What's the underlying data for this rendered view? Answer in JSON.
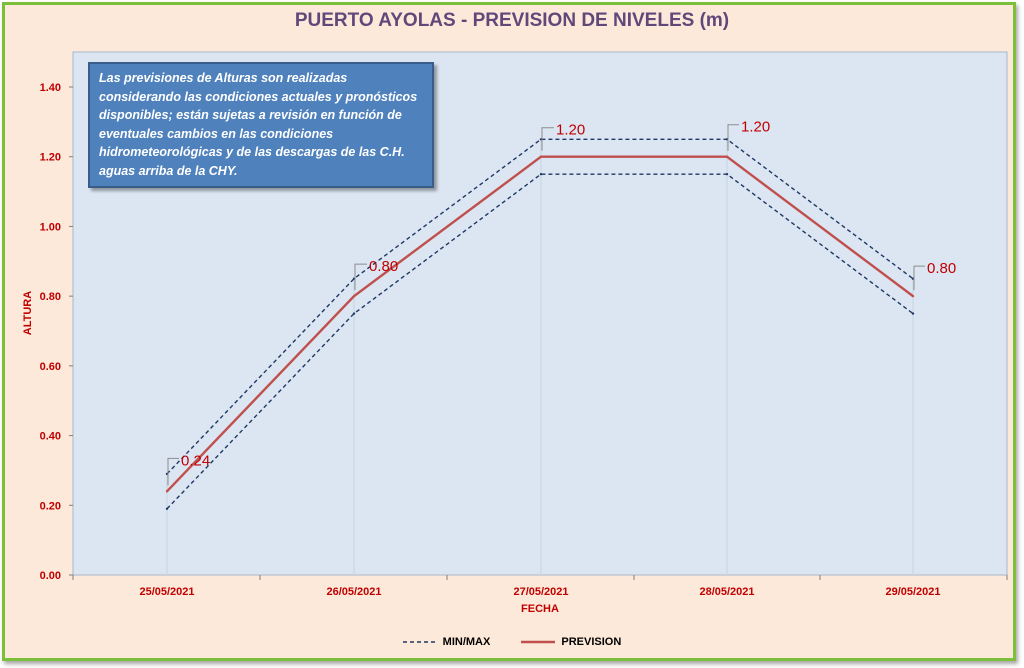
{
  "chart_data": {
    "type": "line",
    "title": "PUERTO AYOLAS - PREVISION DE NIVELES (m)",
    "xlabel": "FECHA",
    "ylabel": "ALTURA",
    "categories": [
      "25/05/2021",
      "26/05/2021",
      "27/05/2021",
      "28/05/2021",
      "29/05/2021"
    ],
    "ylim": [
      0,
      1.4
    ],
    "yticks": [
      "0.00",
      "0.20",
      "0.40",
      "0.60",
      "0.80",
      "1.00",
      "1.20",
      "1.40"
    ],
    "series": [
      {
        "name": "PREVISION",
        "values": [
          0.24,
          0.8,
          1.2,
          1.2,
          0.8
        ],
        "color": "#c0504d",
        "style": "solid"
      },
      {
        "name": "MIN/MAX",
        "values": [
          0.29,
          0.85,
          1.25,
          1.25,
          0.85
        ],
        "color": "#1f3864",
        "style": "dashed"
      },
      {
        "name": "MIN/MAX",
        "values": [
          0.19,
          0.75,
          1.15,
          1.15,
          0.75
        ],
        "color": "#1f3864",
        "style": "dashed"
      }
    ],
    "data_labels": [
      "0.24",
      "0.80",
      "1.20",
      "1.20",
      "0.80"
    ],
    "legend": [
      "MIN/MAX",
      "PREVISION"
    ],
    "legend_position": "bottom",
    "grid": false
  },
  "note": "Las previsiones de Alturas son realizadas considerando las condiciones actuales y pronósticos disponibles;  están sujetas a revisión en función de eventuales cambios en las condiciones hidrometeorológicas y de las descargas de las C.H. aguas arriba de la CHY.",
  "colors": {
    "plot_bg": "#dce6f2",
    "frame_bg": "#fde9d9",
    "frame_border": "#7bbf3a",
    "title": "#60497a",
    "axis_text": "#c00000",
    "label_text": "#c00000"
  }
}
